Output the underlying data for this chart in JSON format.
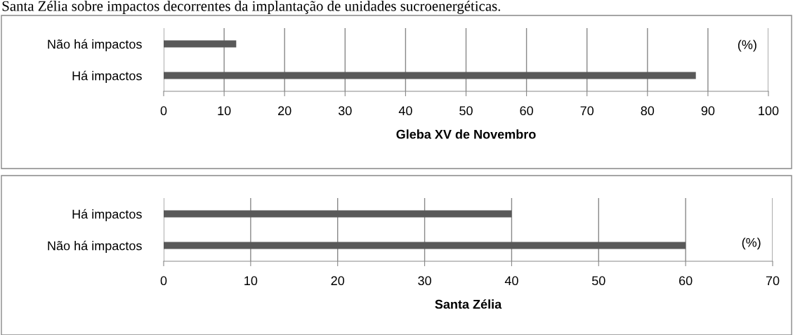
{
  "chart_data": [
    {
      "type": "bar",
      "orientation": "horizontal",
      "xlabel": "Gleba XV de Novembro",
      "categories": [
        "Não há impactos",
        "Há impactos"
      ],
      "values": [
        12,
        88
      ],
      "color": "#595959",
      "xlim": [
        0,
        100
      ],
      "xticks": [
        0,
        10,
        20,
        30,
        40,
        50,
        60,
        70,
        80,
        90,
        100
      ],
      "grid": "x",
      "annotations": [
        "Santa Zélia sobre impactos decorrentes da implantação de unidades sucroenergéticas.",
        "(%)"
      ]
    },
    {
      "type": "bar",
      "orientation": "horizontal",
      "xlabel": "Santa Zélia",
      "categories": [
        "Há impactos",
        "Não há impactos"
      ],
      "values": [
        40,
        60
      ],
      "color": "#595959",
      "xlim": [
        0,
        70
      ],
      "xticks": [
        0,
        10,
        20,
        30,
        40,
        50,
        60,
        70
      ],
      "grid": "x",
      "annotations": [
        "(%)"
      ]
    }
  ]
}
